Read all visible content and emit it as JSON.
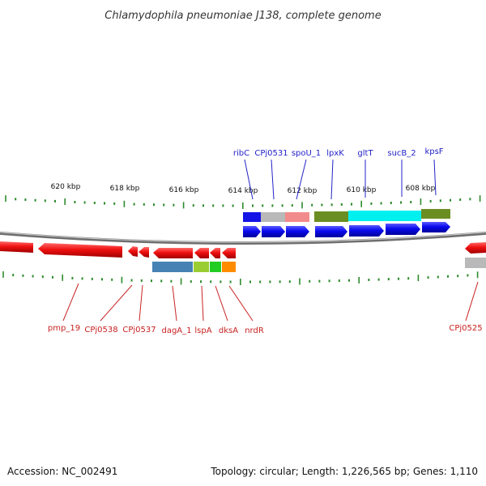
{
  "title": "Chlamydophila pneumoniae J138, complete genome",
  "footer": {
    "accession": "Accession: NC_002491",
    "summary": "Topology: circular; Length: 1,226,565 bp; Genes: 1,110"
  },
  "scale_labels": [
    "620 kbp",
    "618 kbp",
    "616 kbp",
    "614 kbp",
    "612 kbp",
    "610 kbp",
    "608 kbp"
  ],
  "genes_top": [
    "ribC",
    "CPj0531",
    "spoU_1",
    "lpxK",
    "gltT",
    "sucB_2",
    "kpsF"
  ],
  "genes_bottom": [
    "pmp_19",
    "CPj0538",
    "CPj0537",
    "dagA_1",
    "lspA",
    "dksA",
    "nrdR",
    "CPj0525"
  ],
  "colors": {
    "forward_strand": "#0000ee",
    "reverse_strand": "#ee0000",
    "backbone": "#7a7a7a",
    "ticks": "#2e8b2e",
    "top_label": "#1f1fc8",
    "bottom_label": "#c81f1f"
  }
}
